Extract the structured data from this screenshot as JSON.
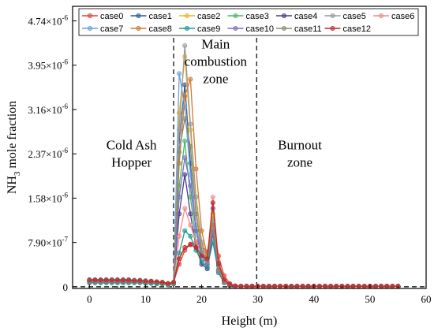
{
  "chart_data": {
    "type": "line",
    "title": "",
    "xlabel": "Height (m)",
    "ylabel_parts": [
      "NH",
      "3",
      " mole fraction"
    ],
    "xlim": [
      -3,
      60
    ],
    "ylim": [
      -3e-08,
      5e-06
    ],
    "x_ticks": [
      0,
      10,
      20,
      30,
      40,
      50,
      60
    ],
    "x_tick_labels": [
      "0",
      "10",
      "20",
      "30",
      "40",
      "50",
      "60"
    ],
    "y_ticks": [
      0,
      7.9e-07,
      1.58e-06,
      2.37e-06,
      3.16e-06,
      3.95e-06,
      4.74e-06
    ],
    "y_tick_labels": [
      [
        "0",
        ""
      ],
      [
        "7.90×10",
        "-7"
      ],
      [
        "1.58×10",
        "-6"
      ],
      [
        "2.37×10",
        "-6"
      ],
      [
        "3.16×10",
        "-6"
      ],
      [
        "3.95×10",
        "-6"
      ],
      [
        "4.74×10",
        "-6"
      ]
    ],
    "grid": false,
    "legend_position": "top",
    "dividers": [
      15,
      29.8
    ],
    "zero_line": 0,
    "zone_labels": [
      {
        "lines": [
          "Cold Ash",
          "Hopper"
        ],
        "x": 7.5,
        "y": 2.45e-06
      },
      {
        "lines": [
          "Main",
          "combustion",
          "zone"
        ],
        "x": 22.5,
        "y": 4.25e-06
      },
      {
        "lines": [
          "Burnout",
          "zone"
        ],
        "x": 37.5,
        "y": 2.45e-06
      }
    ],
    "x": [
      0,
      1,
      2,
      3,
      4,
      5,
      6,
      7,
      8,
      9,
      10,
      11,
      12,
      13,
      14,
      15,
      16,
      17,
      18,
      19,
      20,
      21,
      22,
      23,
      24,
      25,
      26,
      27,
      28,
      29,
      30,
      31,
      32,
      33,
      34,
      35,
      36,
      37,
      38,
      39,
      40,
      41,
      42,
      43,
      44,
      45,
      46,
      47,
      48,
      49,
      50,
      51,
      52,
      53,
      54,
      55
    ],
    "series": [
      {
        "name": "case0",
        "color": "#e8403c",
        "values": [
          1.2e-07,
          1.2e-07,
          1.2e-07,
          1.2e-07,
          1.2e-07,
          1.2e-07,
          1.2e-07,
          1.2e-07,
          1.1e-07,
          1.1e-07,
          1e-07,
          1e-07,
          9e-08,
          8e-08,
          6e-08,
          8e-08,
          4e-07,
          6.5e-07,
          7.6e-07,
          7.8e-07,
          7.3e-07,
          6.2e-07,
          1.2e-06,
          5.5e-07,
          2e-07,
          6e-08,
          2e-08,
          1e-08,
          1e-08,
          1e-08,
          1e-08,
          1e-08,
          1e-08,
          1e-08,
          1e-08,
          1e-08,
          1e-08,
          1e-08,
          1e-08,
          1e-08,
          1e-08,
          1e-08,
          1e-08,
          1e-08,
          1e-08,
          1e-08,
          1e-08,
          1e-08,
          1e-08,
          1e-08,
          1e-08,
          1e-08,
          1e-08,
          1e-08,
          1e-08,
          1e-08
        ]
      },
      {
        "name": "case1",
        "color": "#2b5aa0",
        "values": [
          1e-07,
          1e-07,
          1e-07,
          1e-07,
          1e-07,
          1e-07,
          1e-07,
          1e-07,
          1e-07,
          1e-07,
          9e-08,
          9e-08,
          8e-08,
          7e-08,
          5e-08,
          7e-08,
          2.6e-06,
          3.6e-06,
          2.2e-06,
          1e-06,
          5.5e-07,
          4e-07,
          1.4e-06,
          3.8e-07,
          1.2e-07,
          4e-08,
          1e-08,
          1e-08,
          1e-08,
          1e-08,
          1e-08,
          1e-08,
          1e-08,
          1e-08,
          1e-08,
          1e-08,
          1e-08,
          1e-08,
          1e-08,
          1e-08,
          1e-08,
          1e-08,
          1e-08,
          1e-08,
          1e-08,
          1e-08,
          1e-08,
          1e-08,
          1e-08,
          1e-08,
          1e-08,
          1e-08,
          1e-08,
          1e-08,
          1e-08,
          1e-08
        ]
      },
      {
        "name": "case2",
        "color": "#f2b523",
        "values": [
          9e-08,
          9e-08,
          9e-08,
          9e-08,
          9e-08,
          9e-08,
          9e-08,
          9e-08,
          9e-08,
          9e-08,
          8e-08,
          8e-08,
          7e-08,
          6e-08,
          4e-08,
          6e-08,
          3.1e-06,
          4.1e-06,
          2.8e-06,
          1.4e-06,
          7.5e-07,
          5e-07,
          1.3e-06,
          3.2e-07,
          9e-08,
          3e-08,
          1e-08,
          1e-08,
          1e-08,
          1e-08,
          1e-08,
          1e-08,
          1e-08,
          1e-08,
          1e-08,
          1e-08,
          1e-08,
          1e-08,
          1e-08,
          1e-08,
          1e-08,
          1e-08,
          1e-08,
          1e-08,
          1e-08,
          1e-08,
          1e-08,
          1e-08,
          1e-08,
          1e-08,
          1e-08,
          1e-08,
          1e-08,
          1e-08,
          1e-08,
          1e-08
        ]
      },
      {
        "name": "case3",
        "color": "#4db56a",
        "values": [
          8e-08,
          8e-08,
          8e-08,
          8e-08,
          8e-08,
          8e-08,
          8e-08,
          8e-08,
          8e-08,
          8e-08,
          7e-08,
          7e-08,
          6e-08,
          5e-08,
          4e-08,
          5e-08,
          1.8e-06,
          2.6e-06,
          1.6e-06,
          8e-07,
          4.5e-07,
          3.5e-07,
          1.1e-06,
          3e-07,
          8e-08,
          3e-08,
          1e-08,
          1e-08,
          1e-08,
          1e-08,
          1e-08,
          1e-08,
          1e-08,
          1e-08,
          1e-08,
          1e-08,
          1e-08,
          1e-08,
          1e-08,
          1e-08,
          1e-08,
          1e-08,
          1e-08,
          1e-08,
          1e-08,
          1e-08,
          1e-08,
          1e-08,
          1e-08,
          1e-08,
          1e-08,
          1e-08,
          1e-08,
          1e-08,
          1e-08,
          1e-08
        ]
      },
      {
        "name": "case4",
        "color": "#4b3f8c",
        "values": [
          1.1e-07,
          1.1e-07,
          1.1e-07,
          1.1e-07,
          1.1e-07,
          1.1e-07,
          1.1e-07,
          1.1e-07,
          1e-07,
          1e-07,
          9e-08,
          9e-08,
          8e-08,
          7e-08,
          5e-08,
          7e-08,
          1.3e-06,
          2e-06,
          1.3e-06,
          7e-07,
          4e-07,
          3.2e-07,
          9.5e-07,
          2.8e-07,
          8e-08,
          3e-08,
          1e-08,
          1e-08,
          1e-08,
          1e-08,
          1e-08,
          1e-08,
          1e-08,
          1e-08,
          1e-08,
          1e-08,
          1e-08,
          1e-08,
          1e-08,
          1e-08,
          1e-08,
          1e-08,
          1e-08,
          1e-08,
          1e-08,
          1e-08,
          1e-08,
          1e-08,
          1e-08,
          1e-08,
          1e-08,
          1e-08,
          1e-08,
          1e-08,
          1e-08,
          1e-08
        ]
      },
      {
        "name": "case5",
        "color": "#9a9a9a",
        "values": [
          1e-07,
          1e-07,
          1e-07,
          1e-07,
          1e-07,
          1e-07,
          1e-07,
          1e-07,
          1e-07,
          9e-08,
          9e-08,
          8e-08,
          8e-08,
          7e-08,
          5e-08,
          7e-08,
          2.8e-06,
          4.3e-06,
          2.9e-06,
          1.6e-06,
          8e-07,
          4.5e-07,
          1.2e-06,
          3e-07,
          9e-08,
          3e-08,
          1e-08,
          1e-08,
          1e-08,
          1e-08,
          1e-08,
          1e-08,
          1e-08,
          1e-08,
          1e-08,
          1e-08,
          1e-08,
          1e-08,
          1e-08,
          1e-08,
          1e-08,
          1e-08,
          1e-08,
          1e-08,
          1e-08,
          1e-08,
          1e-08,
          1e-08,
          1e-08,
          1e-08,
          1e-08,
          1e-08,
          1e-08,
          1e-08,
          1e-08,
          1e-08
        ]
      },
      {
        "name": "case6",
        "color": "#f08a8a",
        "values": [
          1.1e-07,
          1.1e-07,
          1.1e-07,
          1.1e-07,
          1.1e-07,
          1.1e-07,
          1.1e-07,
          1.1e-07,
          1e-07,
          1e-07,
          9e-08,
          9e-08,
          8e-08,
          7e-08,
          5e-08,
          7e-08,
          9e-07,
          1.4e-06,
          1.1e-06,
          8e-07,
          6e-07,
          5e-07,
          1.6e-06,
          4.5e-07,
          1.4e-07,
          4e-08,
          1e-08,
          1e-08,
          1e-08,
          1e-08,
          1e-08,
          1e-08,
          1e-08,
          1e-08,
          1e-08,
          1e-08,
          1e-08,
          1e-08,
          1e-08,
          1e-08,
          1e-08,
          1e-08,
          1e-08,
          1e-08,
          1e-08,
          1e-08,
          1e-08,
          1e-08,
          1e-08,
          1e-08,
          1e-08,
          1e-08,
          1e-08,
          1e-08,
          1e-08,
          1e-08
        ]
      },
      {
        "name": "case7",
        "color": "#6fa0d8",
        "values": [
          1.3e-07,
          1.3e-07,
          1.3e-07,
          1.3e-07,
          1.3e-07,
          1.3e-07,
          1.3e-07,
          1.3e-07,
          1.2e-07,
          1.2e-07,
          1.1e-07,
          1e-07,
          9e-08,
          8e-08,
          6e-08,
          8e-08,
          3.8e-06,
          3.2e-06,
          2e-06,
          1.1e-06,
          6e-07,
          4.2e-07,
          1e-06,
          3e-07,
          9e-08,
          3e-08,
          1e-08,
          1e-08,
          1e-08,
          1e-08,
          1e-08,
          1e-08,
          1e-08,
          1e-08,
          1e-08,
          1e-08,
          1e-08,
          1e-08,
          1e-08,
          1e-08,
          1e-08,
          1e-08,
          1e-08,
          1e-08,
          1e-08,
          1e-08,
          1e-08,
          1e-08,
          1e-08,
          1e-08,
          1e-08,
          1e-08,
          1e-08,
          1e-08,
          1e-08,
          1e-08
        ]
      },
      {
        "name": "case8",
        "color": "#d4782a",
        "values": [
          9e-08,
          9e-08,
          9e-08,
          9e-08,
          9e-08,
          9e-08,
          9e-08,
          9e-08,
          9e-08,
          9e-08,
          8e-08,
          8e-08,
          7e-08,
          6e-08,
          4e-08,
          6e-08,
          2.2e-06,
          3.4e-06,
          3.7e-06,
          2.1e-06,
          1e-06,
          5.5e-07,
          1.1e-06,
          3e-07,
          9e-08,
          3e-08,
          1e-08,
          1e-08,
          1e-08,
          1e-08,
          1e-08,
          1e-08,
          1e-08,
          1e-08,
          1e-08,
          1e-08,
          1e-08,
          1e-08,
          1e-08,
          1e-08,
          1e-08,
          1e-08,
          1e-08,
          1e-08,
          1e-08,
          1e-08,
          1e-08,
          1e-08,
          1e-08,
          1e-08,
          1e-08,
          1e-08,
          1e-08,
          1e-08,
          1e-08,
          1e-08
        ]
      },
      {
        "name": "case9",
        "color": "#1e9a8c",
        "values": [
          7e-08,
          7e-08,
          7e-08,
          7e-08,
          7e-08,
          7e-08,
          7e-08,
          7e-08,
          7e-08,
          7e-08,
          6e-08,
          6e-08,
          5e-08,
          5e-08,
          3e-08,
          5e-08,
          6e-07,
          1e-06,
          9e-07,
          6.5e-07,
          4.5e-07,
          3.5e-07,
          8e-07,
          2.5e-07,
          7e-08,
          2e-08,
          1e-08,
          1e-08,
          1e-08,
          1e-08,
          1e-08,
          1e-08,
          1e-08,
          1e-08,
          1e-08,
          1e-08,
          1e-08,
          1e-08,
          1e-08,
          1e-08,
          1e-08,
          1e-08,
          1e-08,
          1e-08,
          1e-08,
          1e-08,
          1e-08,
          1e-08,
          1e-08,
          1e-08,
          1e-08,
          1e-08,
          1e-08,
          1e-08,
          1e-08,
          1e-08
        ]
      },
      {
        "name": "case10",
        "color": "#7f6fc0",
        "values": [
          1e-07,
          1e-07,
          1e-07,
          1e-07,
          1e-07,
          1e-07,
          1e-07,
          1e-07,
          1e-07,
          9e-08,
          9e-08,
          8e-08,
          8e-08,
          7e-08,
          5e-08,
          7e-08,
          1.6e-06,
          2.3e-06,
          1.8e-06,
          1e-06,
          5.5e-07,
          4e-07,
          1e-06,
          2.8e-07,
          8e-08,
          3e-08,
          1e-08,
          1e-08,
          1e-08,
          1e-08,
          1e-08,
          1e-08,
          1e-08,
          1e-08,
          1e-08,
          1e-08,
          1e-08,
          1e-08,
          1e-08,
          1e-08,
          1e-08,
          1e-08,
          1e-08,
          1e-08,
          1e-08,
          1e-08,
          1e-08,
          1e-08,
          1e-08,
          1e-08,
          1e-08,
          1e-08,
          1e-08,
          1e-08,
          1e-08,
          1e-08
        ]
      },
      {
        "name": "case11",
        "color": "#8c8c6e",
        "values": [
          1.1e-07,
          1.1e-07,
          1.1e-07,
          1.1e-07,
          1.1e-07,
          1.1e-07,
          1.1e-07,
          1.1e-07,
          1e-07,
          1e-07,
          9e-08,
          9e-08,
          8e-08,
          7e-08,
          5e-08,
          7e-08,
          2.4e-06,
          3e-06,
          2.5e-06,
          1.3e-06,
          6.5e-07,
          4.5e-07,
          1.1e-06,
          3e-07,
          9e-08,
          3e-08,
          1e-08,
          1e-08,
          1e-08,
          1e-08,
          1e-08,
          1e-08,
          1e-08,
          1e-08,
          1e-08,
          1e-08,
          1e-08,
          1e-08,
          1e-08,
          1e-08,
          1e-08,
          1e-08,
          1e-08,
          1e-08,
          1e-08,
          1e-08,
          1e-08,
          1e-08,
          1e-08,
          1e-08,
          1e-08,
          1e-08,
          1e-08,
          1e-08,
          1e-08,
          1e-08
        ]
      },
      {
        "name": "case12",
        "color": "#c0282a",
        "values": [
          1.2e-07,
          1.2e-07,
          1.2e-07,
          1.2e-07,
          1.2e-07,
          1.2e-07,
          1.2e-07,
          1.2e-07,
          1.1e-07,
          1.1e-07,
          1e-07,
          1e-07,
          9e-08,
          8e-08,
          6e-08,
          8e-08,
          5e-07,
          7e-07,
          7.5e-07,
          7e-07,
          5.5e-07,
          5e-07,
          1.5e-06,
          4.2e-07,
          1.3e-07,
          4e-08,
          1e-08,
          1e-08,
          1e-08,
          1e-08,
          1e-08,
          1e-08,
          1e-08,
          1e-08,
          1e-08,
          1e-08,
          1e-08,
          1e-08,
          1e-08,
          1e-08,
          1e-08,
          1e-08,
          1e-08,
          1e-08,
          1e-08,
          1e-08,
          1e-08,
          1e-08,
          1e-08,
          1e-08,
          1e-08,
          1e-08,
          1e-08,
          1e-08,
          1e-08,
          1e-08
        ]
      }
    ]
  }
}
